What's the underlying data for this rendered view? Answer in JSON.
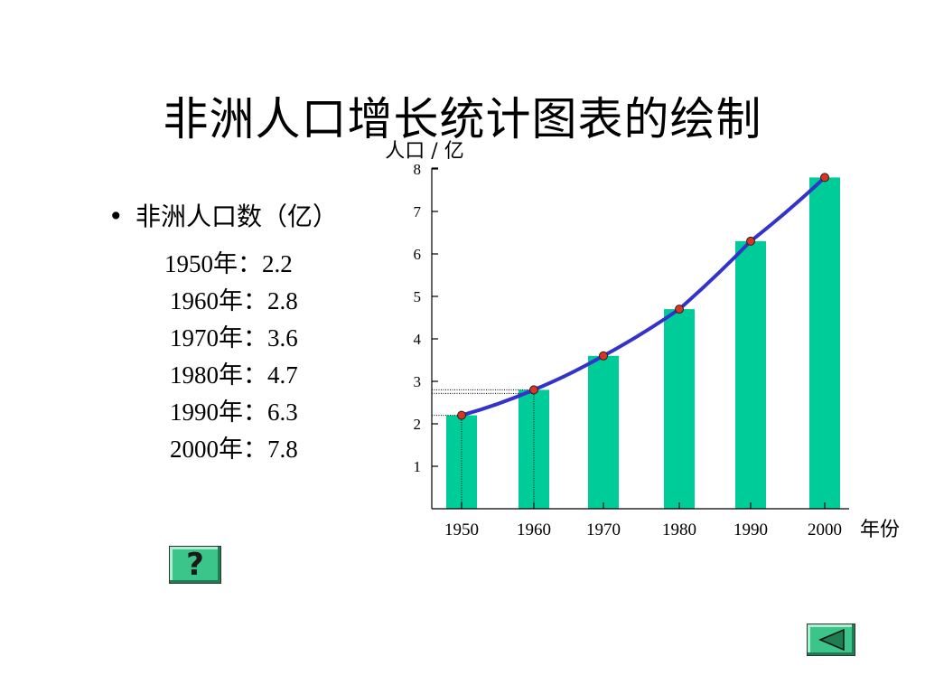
{
  "slide": {
    "title": "非洲人口增长统计图表的绘制",
    "bullet": "•",
    "bullet_text": "非洲人口数（亿）",
    "data_lines": [
      "1950年：2.2",
      "1960年：2.8",
      "1970年：3.6",
      "1980年：4.7",
      "1990年：6.3",
      "2000年：7.8"
    ],
    "help_label": "?",
    "back_icon": "triangle-left-icon"
  },
  "chart_data": {
    "type": "bar",
    "categories": [
      "1950",
      "1960",
      "1970",
      "1980",
      "1990",
      "2000"
    ],
    "values": [
      2.2,
      2.8,
      3.6,
      4.7,
      6.3,
      7.8
    ],
    "ylabel": "人口 / 亿",
    "xlabel": "年份",
    "yticks": [
      1,
      2,
      3,
      4,
      5,
      6,
      7,
      8
    ],
    "ylim": [
      0,
      8
    ],
    "line_overlay": true,
    "bar_color": "#00cc99",
    "line_color": "#3333cc",
    "marker_color": "#dd3322"
  }
}
